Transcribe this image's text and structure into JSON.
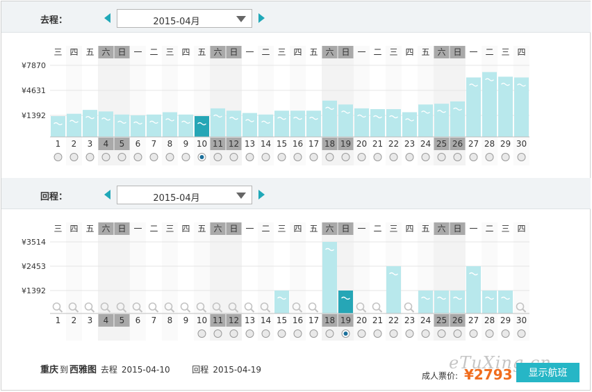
{
  "colors": {
    "bar": "#b8e8ec",
    "bar_selected": "#26a6b6",
    "accent": "#20a8b8",
    "weekend_header": "#a9a9a9",
    "weekend_col": "#f3f3f3",
    "price": "#f06c1e"
  },
  "weekday_headers": [
    "三",
    "四",
    "五",
    "六",
    "日",
    "一",
    "二",
    "三",
    "四",
    "五",
    "六",
    "日",
    "一",
    "二",
    "三",
    "四",
    "五",
    "六",
    "日",
    "一",
    "二",
    "三",
    "四",
    "五",
    "六",
    "日",
    "一",
    "二",
    "三",
    "四"
  ],
  "days": [
    "1",
    "2",
    "3",
    "4",
    "5",
    "6",
    "7",
    "8",
    "9",
    "10",
    "11",
    "12",
    "13",
    "14",
    "15",
    "16",
    "17",
    "18",
    "19",
    "20",
    "21",
    "22",
    "23",
    "24",
    "25",
    "26",
    "27",
    "28",
    "29",
    "30"
  ],
  "weekend_indices": [
    3,
    4,
    10,
    11,
    17,
    18,
    24,
    25
  ],
  "outbound": {
    "label": "去程：",
    "month": "2015-04月",
    "prev_icon": "triangle-left-icon",
    "next_icon": "triangle-right-icon",
    "selected_day": 10,
    "chart_data": {
      "type": "bar",
      "categories": [
        "1",
        "2",
        "3",
        "4",
        "5",
        "6",
        "7",
        "8",
        "9",
        "10",
        "11",
        "12",
        "13",
        "14",
        "15",
        "16",
        "17",
        "18",
        "19",
        "20",
        "21",
        "22",
        "23",
        "24",
        "25",
        "26",
        "27",
        "28",
        "29",
        "30"
      ],
      "y_ticks": [
        {
          "label": "¥7870",
          "value": 7870
        },
        {
          "label": "¥4631",
          "value": 4631
        },
        {
          "label": "¥1392",
          "value": 1392
        }
      ],
      "values": [
        1300,
        1600,
        2100,
        1900,
        1500,
        1400,
        1500,
        1800,
        1500,
        1300,
        2300,
        2000,
        1700,
        1500,
        2000,
        2000,
        2000,
        3300,
        2800,
        2300,
        2200,
        2200,
        1800,
        2800,
        2900,
        3200,
        6300,
        7000,
        6400,
        6300
      ],
      "selected_index": 9
    }
  },
  "inbound": {
    "label": "回程：",
    "month": "2015-04月",
    "prev_icon": "triangle-left-icon",
    "next_icon": "triangle-right-icon",
    "selected_day": 19,
    "chart_data": {
      "type": "bar",
      "categories": [
        "1",
        "2",
        "3",
        "4",
        "5",
        "6",
        "7",
        "8",
        "9",
        "10",
        "11",
        "12",
        "13",
        "14",
        "15",
        "16",
        "17",
        "18",
        "19",
        "20",
        "21",
        "22",
        "23",
        "24",
        "25",
        "26",
        "27",
        "28",
        "29",
        "30"
      ],
      "y_ticks": [
        {
          "label": "¥3514",
          "value": 3514
        },
        {
          "label": "¥2453",
          "value": 2453
        },
        {
          "label": "¥1392",
          "value": 1392
        }
      ],
      "values": [
        null,
        null,
        null,
        null,
        null,
        null,
        null,
        null,
        null,
        null,
        null,
        null,
        null,
        null,
        1392,
        null,
        null,
        3514,
        1392,
        null,
        null,
        2453,
        null,
        1392,
        1392,
        1392,
        2453,
        1392,
        1392,
        null
      ],
      "no_data_icon": "magnifier-icon",
      "selected_index": 18
    }
  },
  "summary": {
    "from_city": "重庆",
    "to_word": "到",
    "to_city": "西雅图",
    "outbound_label": "去程",
    "outbound_date": "2015-04-10",
    "return_label": "回程",
    "return_date": "2015-04-19"
  },
  "price": {
    "label": "成人票价:",
    "value": "¥2793"
  },
  "show_button_label": "显示航班",
  "watermark_text": "eTuXing.cn"
}
